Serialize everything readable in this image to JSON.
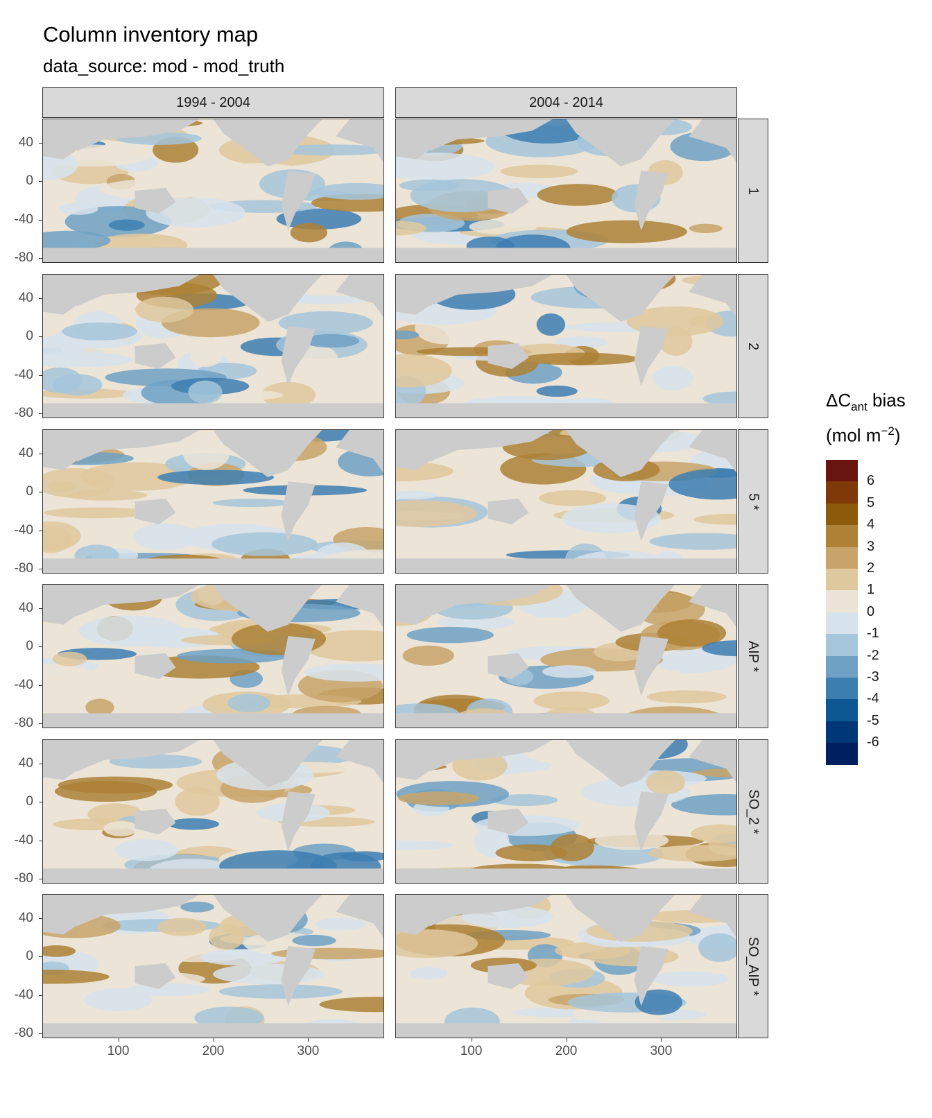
{
  "title": "Column inventory map",
  "subtitle": "data_source: mod - mod_truth",
  "columns": [
    "1994 - 2004",
    "2004 - 2014"
  ],
  "rows": [
    "1",
    "2",
    "5 *",
    "AIP *",
    "SO_2 *",
    "SO_AIP *"
  ],
  "y_axis": {
    "ticks": [
      "40",
      "0",
      "-40",
      "-80"
    ],
    "values": [
      40,
      0,
      -40,
      -80
    ],
    "range": [
      -85,
      65
    ]
  },
  "x_axis": {
    "ticks": [
      "100",
      "200",
      "300"
    ],
    "values": [
      100,
      200,
      300
    ],
    "range": [
      20,
      380
    ]
  },
  "legend": {
    "title_main": "ΔC",
    "title_sub": "ant",
    "title_tail": " bias",
    "unit_prefix": "(mol m",
    "unit_sup": "−2",
    "unit_suffix": ")",
    "labels": [
      "6",
      "5",
      "4",
      "3",
      "2",
      "1",
      "0",
      "-1",
      "-2",
      "-3",
      "-4",
      "-5",
      "-6"
    ],
    "colors": [
      "#67150e",
      "#7f3808",
      "#8c5a0b",
      "#ad8136",
      "#c8a46a",
      "#dfc89e",
      "#ece4d6",
      "#d7e3ec",
      "#a6c6db",
      "#6ea1c4",
      "#3d7eb1",
      "#0e5792",
      "#003777",
      "#001f5e"
    ]
  },
  "colors": {
    "land": "#cccccc",
    "strip": "#d9d9d9",
    "ocean_base": "#ece4d6"
  }
}
